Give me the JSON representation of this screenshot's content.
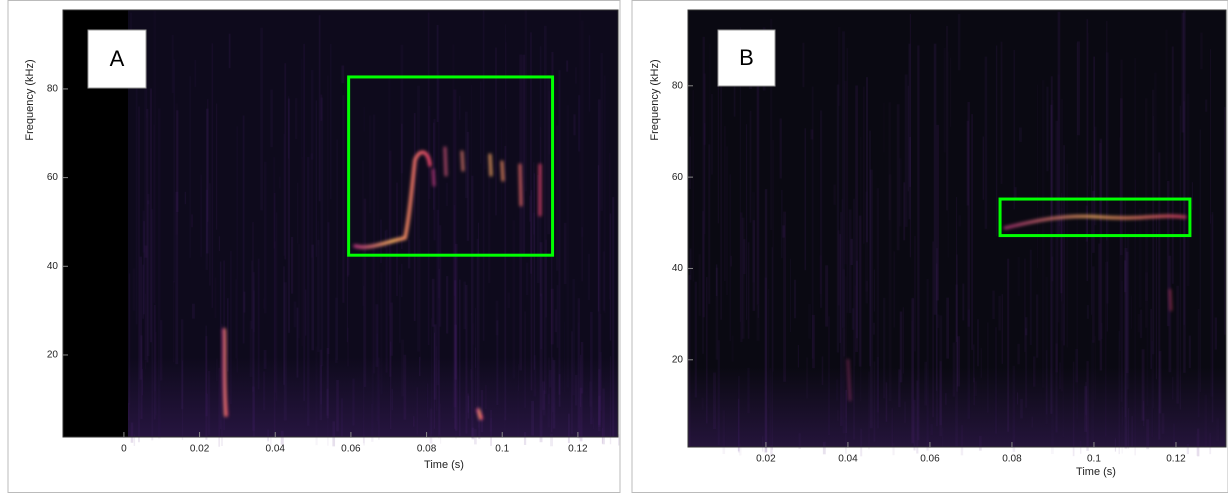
{
  "chart_data": [
    {
      "type": "spectrogram",
      "panel_label": "A",
      "xlabel": "Time (s)",
      "ylabel": "Frequency (kHz)",
      "xlim": [
        -0.0161,
        0.1306
      ],
      "ylim": [
        1.5,
        97.8
      ],
      "xticks": [
        0,
        0.02,
        0.04,
        0.06,
        0.08,
        0.1,
        0.12
      ],
      "yticks": [
        20,
        40,
        60,
        80
      ],
      "boxes": [
        {
          "xlim": [
            0.0594,
            0.1133
          ],
          "ylim": [
            42.5,
            82.7
          ],
          "color": "#00ff00"
        }
      ]
    },
    {
      "type": "spectrogram",
      "panel_label": "B",
      "xlabel": "Time (s)",
      "ylabel": "Frequency (kHz)",
      "xlim": [
        0.001,
        0.1322
      ],
      "ylim": [
        0.9,
        96.6
      ],
      "xticks": [
        0.02,
        0.04,
        0.06,
        0.08,
        0.1,
        0.12
      ],
      "yticks": [
        20,
        40,
        60,
        80
      ],
      "boxes": [
        {
          "xlim": [
            0.0771,
            0.1234
          ],
          "ylim": [
            47.2,
            55.2
          ],
          "color": "#00ff00"
        }
      ]
    }
  ]
}
